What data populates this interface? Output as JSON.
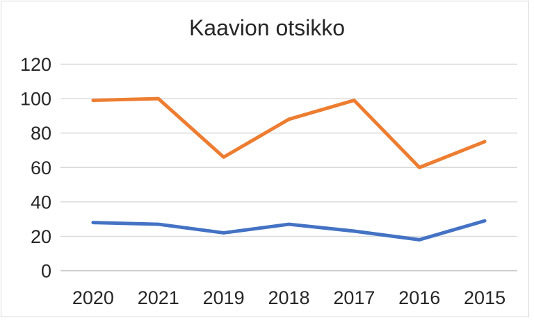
{
  "title": "Kaavion otsikko",
  "colors": {
    "background": "#FFFFFF",
    "border": "#D9D9D9",
    "gridline": "#D9D9D9",
    "axis_line": "#BFBFBF",
    "tick_text": "#262626",
    "series_orange": "#ED7D31",
    "series_blue": "#4472C4"
  },
  "chart_data": {
    "type": "line",
    "title": "Kaavion otsikko",
    "categories": [
      "2020",
      "2021",
      "2019",
      "2018",
      "2017",
      "2016",
      "2015"
    ],
    "series": [
      {
        "name": "orange",
        "color": "#ED7D31",
        "values": [
          99,
          100,
          66,
          88,
          99,
          60,
          75
        ]
      },
      {
        "name": "blue",
        "color": "#4472C4",
        "values": [
          28,
          27,
          22,
          27,
          23,
          18,
          29
        ]
      }
    ],
    "xlabel": "",
    "ylabel": "",
    "ylim": [
      0,
      120
    ],
    "yticks": [
      0,
      20,
      40,
      60,
      80,
      100,
      120
    ],
    "grid": "horizontal",
    "legend": "none"
  }
}
